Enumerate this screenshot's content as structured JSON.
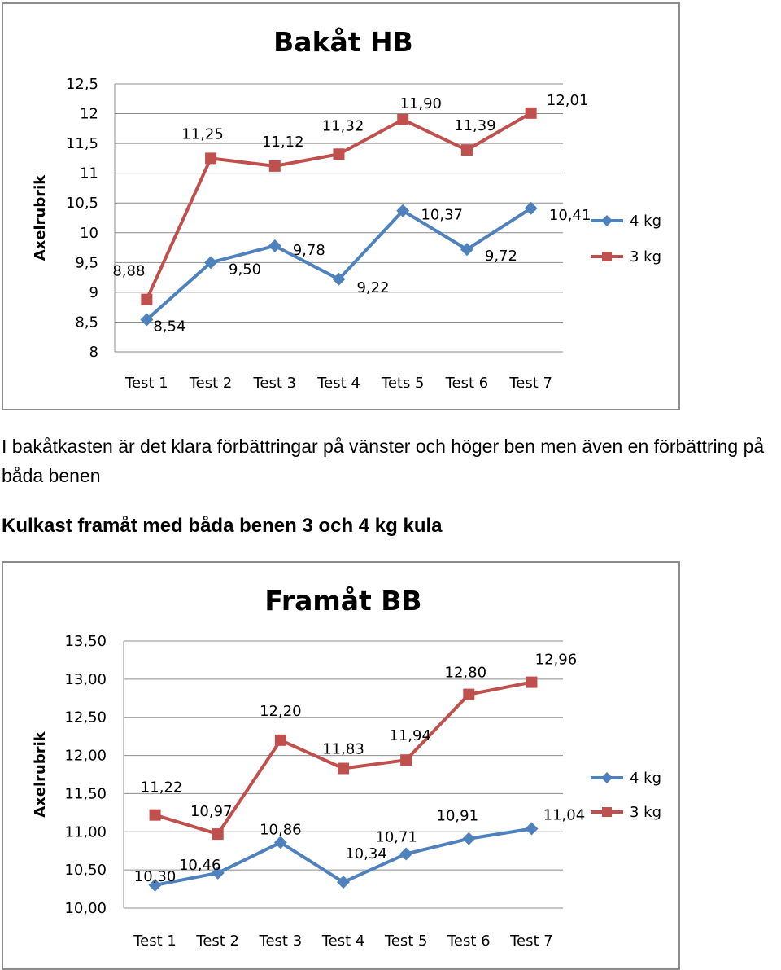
{
  "paragraph1": "I bakåtkasten är det klara förbättringar på vänster och höger ben men även en förbättring på båda benen",
  "heading2": "Kulkast framåt med båda benen 3 och 4 kg kula",
  "colors": {
    "series_4kg": "#4f81bd",
    "series_3kg": "#c0504d",
    "grid": "#8c8c8c"
  },
  "chart_data": [
    {
      "type": "line",
      "title": "Bakåt HB",
      "ylabel": "Axelrubrik",
      "xlabel": "",
      "categories": [
        "Test 1",
        "Test 2",
        "Test 3",
        "Test 4",
        "Tets 5",
        "Test 6",
        "Test 7"
      ],
      "ylim": [
        8,
        12.5
      ],
      "yticks": [
        8,
        8.5,
        9,
        9.5,
        10,
        10.5,
        11,
        11.5,
        12,
        12.5
      ],
      "ytick_labels": [
        "8",
        "8,5",
        "9",
        "9,5",
        "10",
        "10,5",
        "11",
        "11,5",
        "12",
        "12,5"
      ],
      "grid": true,
      "legend": "right",
      "series": [
        {
          "name": "4 kg",
          "marker": "diamond",
          "color": "#4f81bd",
          "values": [
            8.54,
            9.5,
            9.78,
            9.22,
            10.37,
            9.72,
            10.41
          ],
          "labels": [
            "8,54",
            "9,50",
            "9,78",
            "9,22",
            "10,37",
            "9,72",
            "10,41"
          ]
        },
        {
          "name": "3 kg",
          "marker": "square",
          "color": "#c0504d",
          "values": [
            8.88,
            11.25,
            11.12,
            11.32,
            11.9,
            11.39,
            12.01
          ],
          "labels": [
            "8,88",
            "11,25",
            "11,12",
            "11,32",
            "11,90",
            "11,39",
            "12,01"
          ]
        }
      ]
    },
    {
      "type": "line",
      "title": "Framåt BB",
      "ylabel": "Axelrubrik",
      "xlabel": "",
      "categories": [
        "Test 1",
        "Test 2",
        "Test 3",
        "Test 4",
        "Test 5",
        "Test 6",
        "Test 7"
      ],
      "ylim": [
        10,
        13.5
      ],
      "yticks": [
        10,
        10.5,
        11,
        11.5,
        12,
        12.5,
        13,
        13.5
      ],
      "ytick_labels": [
        "10,00",
        "10,50",
        "11,00",
        "11,50",
        "12,00",
        "12,50",
        "13,00",
        "13,50"
      ],
      "grid": true,
      "legend": "right",
      "series": [
        {
          "name": "4 kg",
          "marker": "diamond",
          "color": "#4f81bd",
          "values": [
            10.3,
            10.46,
            10.86,
            10.34,
            10.71,
            10.91,
            11.04
          ],
          "labels": [
            "10,30",
            "10,46",
            "10,86",
            "10,34",
            "10,71",
            "10,91",
            "11,04"
          ]
        },
        {
          "name": "3 kg",
          "marker": "square",
          "color": "#c0504d",
          "values": [
            11.22,
            10.97,
            12.2,
            11.83,
            11.94,
            12.8,
            12.96
          ],
          "labels": [
            "11,22",
            "10,97",
            "12,20",
            "11,83",
            "11,94",
            "12,80",
            "12,96"
          ]
        }
      ]
    }
  ]
}
